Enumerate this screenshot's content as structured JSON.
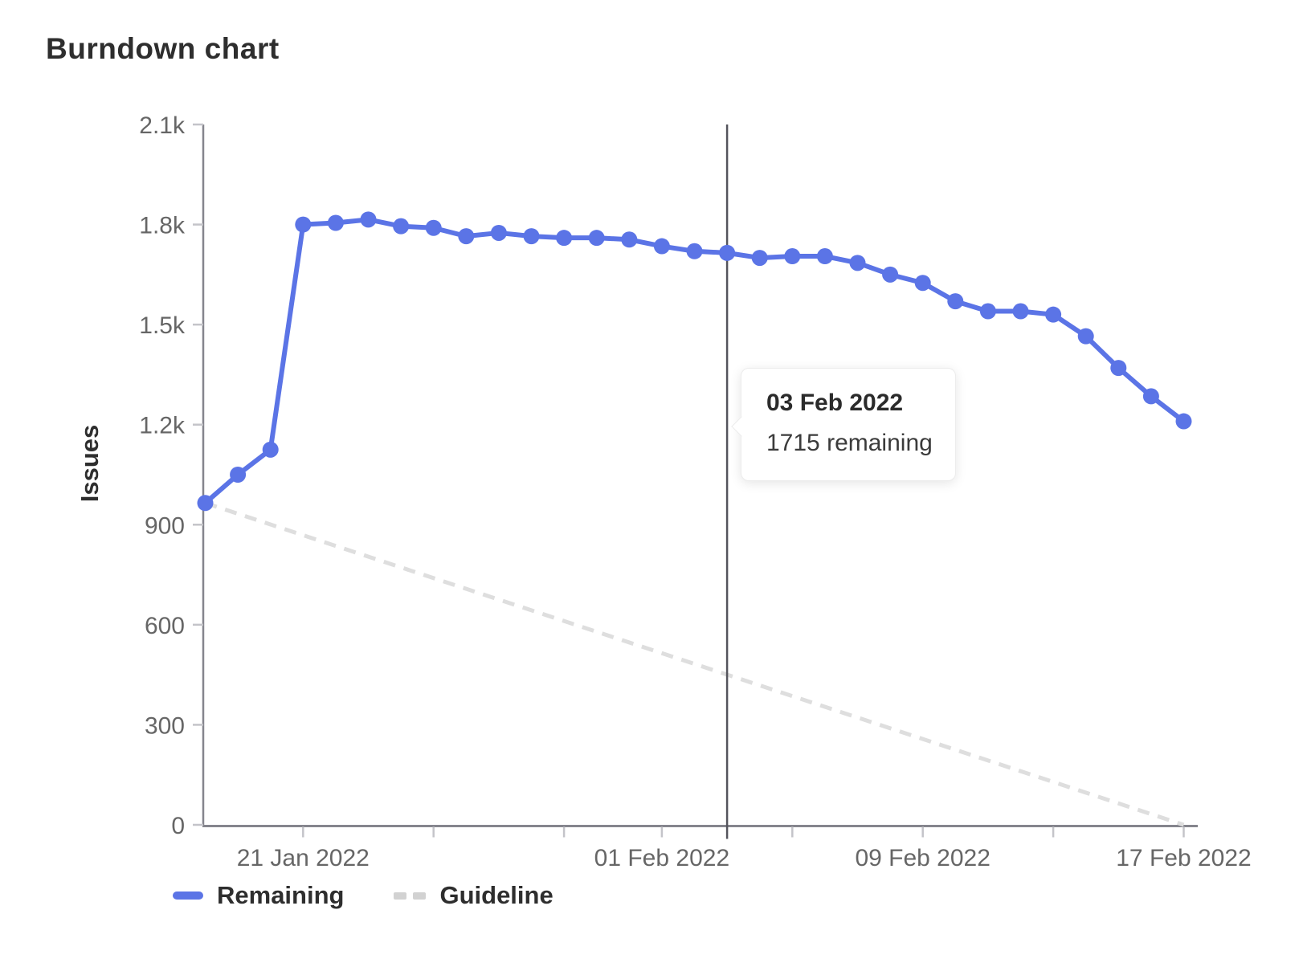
{
  "page": {
    "title": "Burndown chart"
  },
  "chart_data": {
    "type": "line",
    "title": "Burndown chart",
    "xlabel": "",
    "ylabel": "Issues",
    "grid": false,
    "x_start_date": "18 Jan 2022",
    "x_end_date": "17 Feb 2022",
    "dates": [
      "18 Jan 2022",
      "19 Jan 2022",
      "20 Jan 2022",
      "21 Jan 2022",
      "22 Jan 2022",
      "23 Jan 2022",
      "24 Jan 2022",
      "25 Jan 2022",
      "26 Jan 2022",
      "27 Jan 2022",
      "28 Jan 2022",
      "29 Jan 2022",
      "30 Jan 2022",
      "31 Jan 2022",
      "01 Feb 2022",
      "02 Feb 2022",
      "03 Feb 2022",
      "04 Feb 2022",
      "05 Feb 2022",
      "06 Feb 2022",
      "07 Feb 2022",
      "08 Feb 2022",
      "09 Feb 2022",
      "10 Feb 2022",
      "11 Feb 2022",
      "12 Feb 2022",
      "13 Feb 2022",
      "14 Feb 2022",
      "15 Feb 2022",
      "16 Feb 2022",
      "17 Feb 2022"
    ],
    "series": [
      {
        "name": "Remaining",
        "style": "solid",
        "color": "#5b74e6",
        "values": [
          965,
          1050,
          1125,
          1800,
          1805,
          1815,
          1795,
          1790,
          1765,
          1775,
          1765,
          1760,
          1760,
          1755,
          1735,
          1720,
          1715,
          1700,
          1705,
          1705,
          1685,
          1650,
          1625,
          1570,
          1540,
          1540,
          1530,
          1465,
          1370,
          1285,
          1210
        ]
      },
      {
        "name": "Guideline",
        "style": "dashed",
        "color": "#dedede",
        "points": [
          {
            "day": 0,
            "value": 965
          },
          {
            "day": 30,
            "value": 0
          }
        ]
      }
    ],
    "y_axis": {
      "min": 0,
      "max": 2100,
      "ticks": [
        {
          "value": 0,
          "label": "0"
        },
        {
          "value": 300,
          "label": "300"
        },
        {
          "value": 600,
          "label": "600"
        },
        {
          "value": 900,
          "label": "900"
        },
        {
          "value": 1200,
          "label": "1.2k"
        },
        {
          "value": 1500,
          "label": "1.5k"
        },
        {
          "value": 1800,
          "label": "1.8k"
        },
        {
          "value": 2100,
          "label": "2.1k"
        }
      ]
    },
    "x_axis": {
      "tick_days": [
        3,
        7,
        11,
        14,
        18,
        22,
        26,
        30
      ],
      "labels": [
        {
          "day": 3,
          "text": "21 Jan 2022"
        },
        {
          "day": 14,
          "text": "01 Feb 2022"
        },
        {
          "day": 22,
          "text": "09 Feb 2022"
        },
        {
          "day": 30,
          "text": "17 Feb 2022"
        }
      ]
    },
    "cursor": {
      "day": 16,
      "date": "03 Feb 2022"
    },
    "tooltip": {
      "title": "03 Feb 2022",
      "body": "1715 remaining"
    },
    "legend": {
      "position": "bottom-left",
      "entries": [
        "Remaining",
        "Guideline"
      ]
    },
    "colors": {
      "remaining_line": "#5b74e6",
      "guideline_line": "#dedede",
      "axis_line": "#85858d",
      "axis_tick": "#c4c4c9",
      "axis_text": "#666666",
      "cursor_line": "#54545c"
    }
  }
}
